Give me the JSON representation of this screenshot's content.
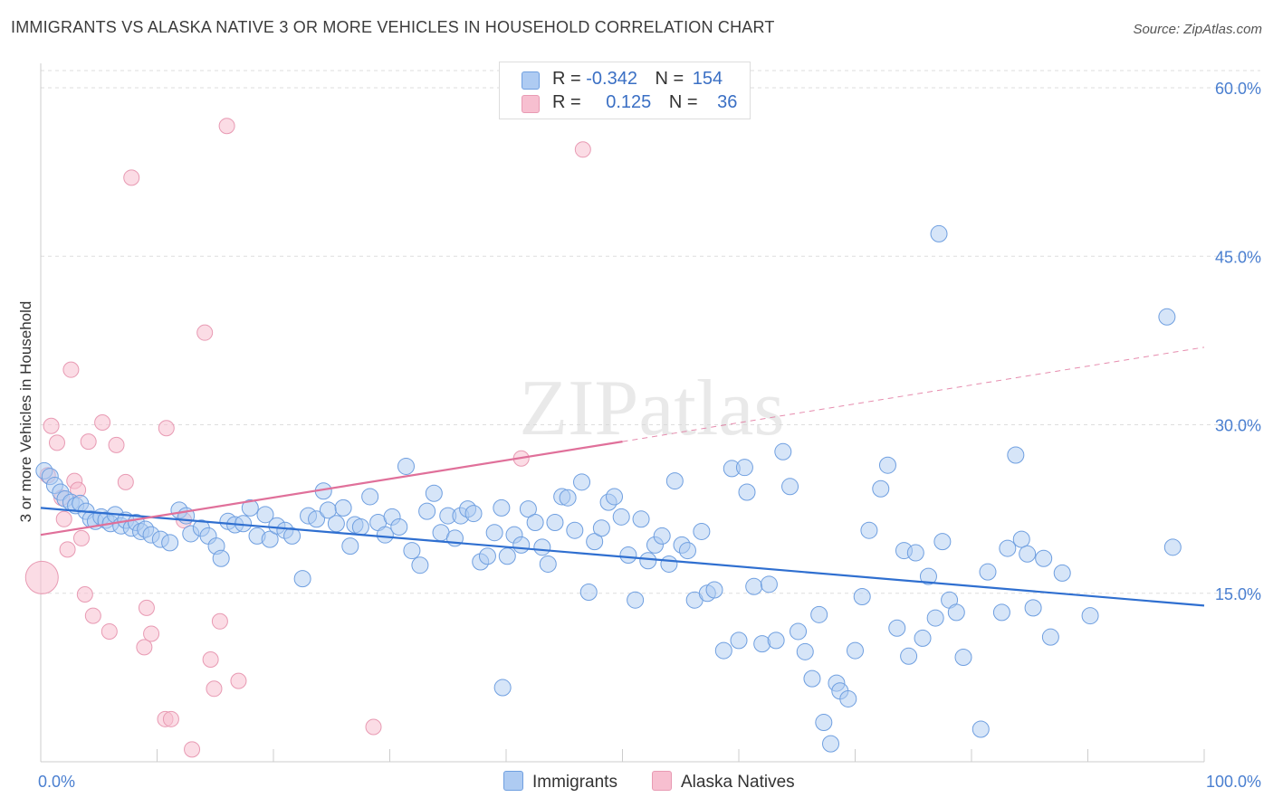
{
  "title": "IMMIGRANTS VS ALASKA NATIVE 3 OR MORE VEHICLES IN HOUSEHOLD CORRELATION CHART",
  "source": "Source: ZipAtlas.com",
  "watermark": "ZIPatlas",
  "legend": {
    "rows": [
      {
        "r_label": "R =",
        "r_value": "-0.342",
        "n_label": "N =",
        "n_value": "154"
      },
      {
        "r_label": "R =",
        "r_value": "0.125",
        "n_label": "N =",
        "n_value": "36"
      }
    ]
  },
  "bottom_legend": {
    "immigrants": "Immigrants",
    "alaska": "Alaska Natives"
  },
  "colors": {
    "blue_fill": "#aecbf2",
    "blue_stroke": "#6f9fe0",
    "blue_line": "#2f6fd0",
    "pink_fill": "#f7bfd0",
    "pink_stroke": "#e89ab3",
    "pink_line": "#e0709a",
    "tick_text": "#4a7fd0",
    "grid": "#dddddd"
  },
  "chart_data": {
    "type": "scatter",
    "title": "IMMIGRANTS VS ALASKA NATIVE 3 OR MORE VEHICLES IN HOUSEHOLD CORRELATION CHART",
    "xlabel": "",
    "ylabel": "3 or more Vehicles in Household",
    "xlim": [
      0,
      100
    ],
    "ylim": [
      0,
      63
    ],
    "x_tick_labels": [
      "0.0%",
      "100.0%"
    ],
    "y_ticks": [
      15,
      30,
      45,
      60
    ],
    "y_tick_labels": [
      "15.0%",
      "30.0%",
      "45.0%",
      "60.0%"
    ],
    "grid": "horizontal dashed",
    "legend_placement": "top-center",
    "series": [
      {
        "name": "Immigrants",
        "trend": {
          "x0": 0,
          "y0": 22.6,
          "x1": 100,
          "y1": 13.9
        },
        "points": [
          [
            0.3,
            25.9
          ],
          [
            0.8,
            25.4
          ],
          [
            1.2,
            24.6
          ],
          [
            1.7,
            24.0
          ],
          [
            2.1,
            23.4
          ],
          [
            2.6,
            23.1
          ],
          [
            3.0,
            22.8
          ],
          [
            3.4,
            23.0
          ],
          [
            3.9,
            22.3
          ],
          [
            4.3,
            21.6
          ],
          [
            4.7,
            21.4
          ],
          [
            5.2,
            21.8
          ],
          [
            5.6,
            21.5
          ],
          [
            6.0,
            21.2
          ],
          [
            6.4,
            22.0
          ],
          [
            6.9,
            21.0
          ],
          [
            7.3,
            21.5
          ],
          [
            7.8,
            20.8
          ],
          [
            8.2,
            21.3
          ],
          [
            8.6,
            20.5
          ],
          [
            9.0,
            20.7
          ],
          [
            9.5,
            20.2
          ],
          [
            10.3,
            19.8
          ],
          [
            11.1,
            19.5
          ],
          [
            11.9,
            22.4
          ],
          [
            12.5,
            21.9
          ],
          [
            12.9,
            20.3
          ],
          [
            13.8,
            20.8
          ],
          [
            14.4,
            20.1
          ],
          [
            15.1,
            19.2
          ],
          [
            15.5,
            18.1
          ],
          [
            16.1,
            21.4
          ],
          [
            16.7,
            21.1
          ],
          [
            17.4,
            21.2
          ],
          [
            18.0,
            22.6
          ],
          [
            18.6,
            20.1
          ],
          [
            19.3,
            22.0
          ],
          [
            19.7,
            19.8
          ],
          [
            20.3,
            21.0
          ],
          [
            21.0,
            20.6
          ],
          [
            21.6,
            20.1
          ],
          [
            22.5,
            16.3
          ],
          [
            23.0,
            21.9
          ],
          [
            23.7,
            21.6
          ],
          [
            24.3,
            24.1
          ],
          [
            24.7,
            22.4
          ],
          [
            25.4,
            21.2
          ],
          [
            26.0,
            22.6
          ],
          [
            26.6,
            19.2
          ],
          [
            27.0,
            21.1
          ],
          [
            27.5,
            20.9
          ],
          [
            28.3,
            23.6
          ],
          [
            29.0,
            21.3
          ],
          [
            29.6,
            20.2
          ],
          [
            30.2,
            21.8
          ],
          [
            30.8,
            20.9
          ],
          [
            31.4,
            26.3
          ],
          [
            31.9,
            18.8
          ],
          [
            32.6,
            17.5
          ],
          [
            33.2,
            22.3
          ],
          [
            33.8,
            23.9
          ],
          [
            34.4,
            20.4
          ],
          [
            35.0,
            21.9
          ],
          [
            35.6,
            19.9
          ],
          [
            36.1,
            21.9
          ],
          [
            36.7,
            22.5
          ],
          [
            37.2,
            22.1
          ],
          [
            37.8,
            17.8
          ],
          [
            38.4,
            18.3
          ],
          [
            39.0,
            20.4
          ],
          [
            39.6,
            22.6
          ],
          [
            40.1,
            18.3
          ],
          [
            40.7,
            20.2
          ],
          [
            41.3,
            19.3
          ],
          [
            41.9,
            22.5
          ],
          [
            42.5,
            21.3
          ],
          [
            43.1,
            19.1
          ],
          [
            43.6,
            17.6
          ],
          [
            44.2,
            21.3
          ],
          [
            44.8,
            23.6
          ],
          [
            45.3,
            23.5
          ],
          [
            45.9,
            20.6
          ],
          [
            46.5,
            24.9
          ],
          [
            47.1,
            15.1
          ],
          [
            47.6,
            19.6
          ],
          [
            48.2,
            20.8
          ],
          [
            48.8,
            23.1
          ],
          [
            49.3,
            23.6
          ],
          [
            49.9,
            21.8
          ],
          [
            50.5,
            18.4
          ],
          [
            51.1,
            14.4
          ],
          [
            51.6,
            21.6
          ],
          [
            52.2,
            17.9
          ],
          [
            52.8,
            19.3
          ],
          [
            53.4,
            20.1
          ],
          [
            54.0,
            17.6
          ],
          [
            54.5,
            25.0
          ],
          [
            55.1,
            19.3
          ],
          [
            55.6,
            18.8
          ],
          [
            56.2,
            14.4
          ],
          [
            56.8,
            20.5
          ],
          [
            57.3,
            15.0
          ],
          [
            57.9,
            15.3
          ],
          [
            58.7,
            9.9
          ],
          [
            59.4,
            26.1
          ],
          [
            60.0,
            10.8
          ],
          [
            60.5,
            26.2
          ],
          [
            60.7,
            24.0
          ],
          [
            61.3,
            15.6
          ],
          [
            62.0,
            10.5
          ],
          [
            62.6,
            15.8
          ],
          [
            63.2,
            10.8
          ],
          [
            63.8,
            27.6
          ],
          [
            64.4,
            24.5
          ],
          [
            65.1,
            11.6
          ],
          [
            65.7,
            9.8
          ],
          [
            66.3,
            7.4
          ],
          [
            66.9,
            13.1
          ],
          [
            67.3,
            3.5
          ],
          [
            67.9,
            1.6
          ],
          [
            68.4,
            7.0
          ],
          [
            68.7,
            6.3
          ],
          [
            69.4,
            5.6
          ],
          [
            70.0,
            9.9
          ],
          [
            70.6,
            14.7
          ],
          [
            71.2,
            20.6
          ],
          [
            72.2,
            24.3
          ],
          [
            72.8,
            26.4
          ],
          [
            73.6,
            11.9
          ],
          [
            74.2,
            18.8
          ],
          [
            74.6,
            9.4
          ],
          [
            75.2,
            18.6
          ],
          [
            75.8,
            11.0
          ],
          [
            76.3,
            16.5
          ],
          [
            76.9,
            12.8
          ],
          [
            77.5,
            19.6
          ],
          [
            78.1,
            14.4
          ],
          [
            78.7,
            13.3
          ],
          [
            79.3,
            9.3
          ],
          [
            80.8,
            2.9
          ],
          [
            81.4,
            16.9
          ],
          [
            82.6,
            13.3
          ],
          [
            83.1,
            19.0
          ],
          [
            83.8,
            27.3
          ],
          [
            84.3,
            19.8
          ],
          [
            84.8,
            18.5
          ],
          [
            85.3,
            13.7
          ],
          [
            86.2,
            18.1
          ],
          [
            86.8,
            11.1
          ],
          [
            87.8,
            16.8
          ],
          [
            90.2,
            13.0
          ],
          [
            96.8,
            39.6
          ],
          [
            97.3,
            19.1
          ],
          [
            77.2,
            47.0
          ],
          [
            39.7,
            6.6
          ]
        ]
      },
      {
        "name": "Alaska Natives",
        "trend": {
          "x0": 0,
          "y0": 20.2,
          "x1": 50,
          "y1": 28.5,
          "dashed_x1": 100,
          "dashed_y1": 36.9
        },
        "points": [
          [
            0.1,
            16.4
          ],
          [
            0.6,
            25.5
          ],
          [
            0.9,
            29.9
          ],
          [
            1.4,
            28.4
          ],
          [
            1.8,
            23.5
          ],
          [
            2.0,
            21.6
          ],
          [
            2.3,
            18.9
          ],
          [
            2.6,
            34.9
          ],
          [
            2.9,
            25.0
          ],
          [
            3.2,
            24.2
          ],
          [
            3.5,
            19.9
          ],
          [
            3.8,
            14.9
          ],
          [
            4.1,
            28.5
          ],
          [
            4.5,
            13.0
          ],
          [
            5.3,
            30.2
          ],
          [
            5.9,
            11.6
          ],
          [
            6.5,
            28.2
          ],
          [
            7.3,
            24.9
          ],
          [
            7.8,
            52.0
          ],
          [
            8.9,
            10.2
          ],
          [
            9.1,
            13.7
          ],
          [
            9.5,
            11.4
          ],
          [
            10.8,
            29.7
          ],
          [
            10.7,
            3.8
          ],
          [
            11.2,
            3.8
          ],
          [
            13.0,
            1.1
          ],
          [
            14.1,
            38.2
          ],
          [
            14.6,
            9.1
          ],
          [
            14.9,
            6.5
          ],
          [
            15.4,
            12.5
          ],
          [
            16.0,
            56.6
          ],
          [
            17.0,
            7.2
          ],
          [
            28.6,
            3.1
          ],
          [
            41.3,
            27.0
          ],
          [
            46.6,
            54.5
          ],
          [
            12.3,
            21.5
          ]
        ]
      }
    ]
  }
}
